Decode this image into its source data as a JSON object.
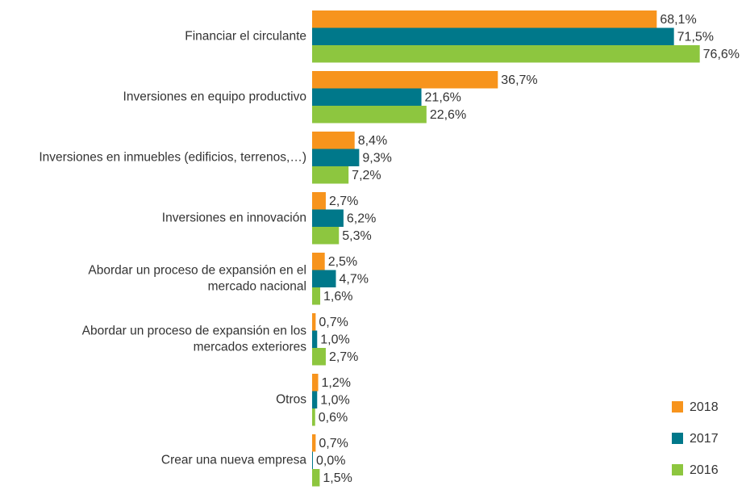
{
  "chart_data": {
    "type": "bar",
    "orientation": "horizontal",
    "categories": [
      "Financiar el circulante",
      "Inversiones en equipo productivo",
      "Inversiones en inmuebles (edificios, terrenos,…)",
      "Inversiones en innovación",
      "Abordar un proceso de expansión en el\nmercado nacional",
      "Abordar un proceso de expansión en los\nmercados exteriores",
      "Otros",
      "Crear una nueva empresa"
    ],
    "series": [
      {
        "name": "2018",
        "color": "#f7941d",
        "values": [
          68.1,
          36.7,
          8.4,
          2.7,
          2.5,
          0.7,
          1.2,
          0.7
        ],
        "value_labels": [
          "68,1%",
          "36,7%",
          "8,4%",
          "2,7%",
          "2,5%",
          "0,7%",
          "1,2%",
          "0,7%"
        ]
      },
      {
        "name": "2017",
        "color": "#00788a",
        "values": [
          71.5,
          21.6,
          9.3,
          6.2,
          4.7,
          1.0,
          1.0,
          0.0
        ],
        "value_labels": [
          "71,5%",
          "21,6%",
          "9,3%",
          "6,2%",
          "4,7%",
          "1,0%",
          "1,0%",
          "0,0%"
        ]
      },
      {
        "name": "2016",
        "color": "#8dc63f",
        "values": [
          76.6,
          22.6,
          7.2,
          5.3,
          1.6,
          2.7,
          0.6,
          1.5
        ],
        "value_labels": [
          "76,6%",
          "22,6%",
          "7,2%",
          "5,3%",
          "1,6%",
          "2,7%",
          "0,6%",
          "1,5%"
        ]
      }
    ],
    "xlim": [
      0,
      80
    ],
    "legend": "bottom-right"
  }
}
